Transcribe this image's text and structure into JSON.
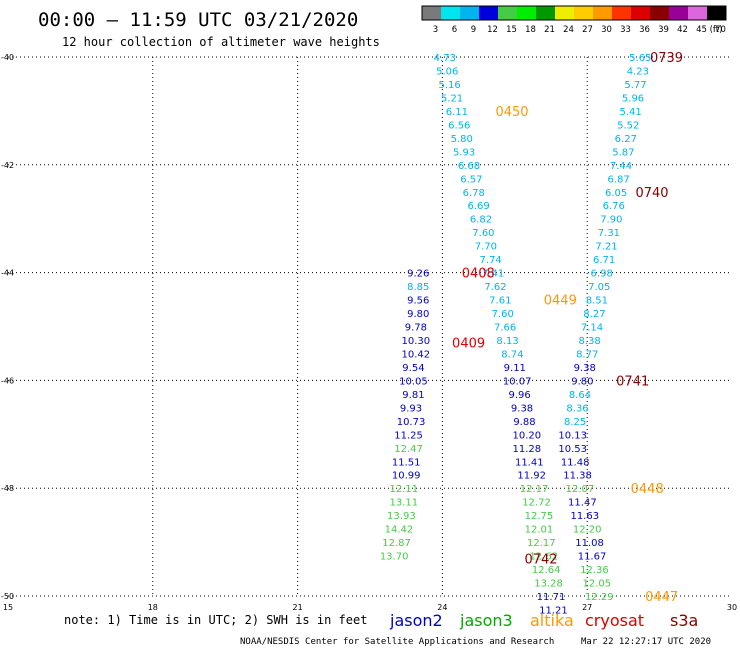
{
  "header": {
    "title": "00:00 – 11:59 UTC 03/21/2020",
    "subtitle": "12 hour collection of altimeter wave heights"
  },
  "colorbar": {
    "labels": [
      "3",
      "6",
      "9",
      "12",
      "15",
      "18",
      "21",
      "24",
      "27",
      "30",
      "33",
      "36",
      "39",
      "42",
      "45",
      "70"
    ],
    "unit": "(ft)",
    "colors": [
      "#7a7a7a",
      "#00e5ee",
      "#00b4f0",
      "#0000dd",
      "#44cc44",
      "#00ee00",
      "#009900",
      "#eeee00",
      "#ffcc00",
      "#ff9900",
      "#ff3300",
      "#dd0000",
      "#880000",
      "#990099",
      "#dd66dd",
      "#000000"
    ]
  },
  "footer": {
    "note": "note: 1) Time is in UTC; 2) SWH is in feet",
    "credit": "NOAA/NESDIS Center for Satellite Applications and Research",
    "timestamp": "Mar 22 12:27:17 UTC 2020"
  },
  "legend": [
    {
      "label": "jason2",
      "color": "#0000cc"
    },
    {
      "label": "jason3",
      "color": "#00aa00"
    },
    {
      "label": "altika",
      "color": "#ff9900"
    },
    {
      "label": "cryosat",
      "color": "#dd0000"
    },
    {
      "label": "s3a",
      "color": "#880000"
    }
  ],
  "chart_data": {
    "type": "scatter",
    "xlim": [
      15,
      30
    ],
    "ylim": [
      -50,
      -40
    ],
    "xticks": [
      "15",
      "18",
      "21",
      "24",
      "27",
      "30"
    ],
    "yticks": [
      "-40",
      "-42",
      "-44",
      "-46",
      "-48",
      "-50"
    ],
    "grid": true,
    "passes": [
      {
        "label": "0739",
        "x": 28.3,
        "y": -40.0,
        "color": "#880000"
      },
      {
        "label": "0450",
        "x": 25.1,
        "y": -41.0,
        "color": "#ff9900"
      },
      {
        "label": "0740",
        "x": 28.0,
        "y": -42.5,
        "color": "#880000"
      },
      {
        "label": "0408",
        "x": 24.4,
        "y": -44.0,
        "color": "#dd0000"
      },
      {
        "label": "0449",
        "x": 26.1,
        "y": -44.5,
        "color": "#ff9900"
      },
      {
        "label": "0409",
        "x": 24.2,
        "y": -45.3,
        "color": "#dd0000"
      },
      {
        "label": "0741",
        "x": 27.6,
        "y": -46.0,
        "color": "#880000"
      },
      {
        "label": "0448",
        "x": 27.9,
        "y": -48.0,
        "color": "#ff9900"
      },
      {
        "label": "0742",
        "x": 25.7,
        "y": -49.3,
        "color": "#880000"
      },
      {
        "label": "0447",
        "x": 28.2,
        "y": -50.0,
        "color": "#ff9900"
      }
    ],
    "series": [
      {
        "name": "jason2",
        "values": [
          {
            "x": 23.5,
            "y": -44.0,
            "v": "9.26",
            "c": "#0000cc"
          },
          {
            "x": 23.5,
            "y": -44.25,
            "v": "8.85",
            "c": "#00b4f0"
          },
          {
            "x": 23.5,
            "y": -44.5,
            "v": "9.56",
            "c": "#0000cc"
          },
          {
            "x": 23.5,
            "y": -44.75,
            "v": "9.80",
            "c": "#0000cc"
          },
          {
            "x": 23.45,
            "y": -45.0,
            "v": "9.78",
            "c": "#0000cc"
          },
          {
            "x": 23.45,
            "y": -45.25,
            "v": "10.30",
            "c": "#0000cc"
          },
          {
            "x": 23.45,
            "y": -45.5,
            "v": "10.42",
            "c": "#0000cc"
          },
          {
            "x": 23.4,
            "y": -45.75,
            "v": "9.54",
            "c": "#0000cc"
          },
          {
            "x": 23.4,
            "y": -46.0,
            "v": "10.05",
            "c": "#0000cc"
          },
          {
            "x": 23.4,
            "y": -46.25,
            "v": "9.81",
            "c": "#0000cc"
          },
          {
            "x": 23.35,
            "y": -46.5,
            "v": "9.93",
            "c": "#0000cc"
          },
          {
            "x": 23.35,
            "y": -46.75,
            "v": "10.73",
            "c": "#0000cc"
          },
          {
            "x": 23.3,
            "y": -47.0,
            "v": "11.25",
            "c": "#0000cc"
          },
          {
            "x": 23.3,
            "y": -47.25,
            "v": "12.47",
            "c": "#44cc44"
          },
          {
            "x": 23.25,
            "y": -47.5,
            "v": "11.51",
            "c": "#0000cc"
          },
          {
            "x": 23.25,
            "y": -47.75,
            "v": "10.99",
            "c": "#0000cc"
          },
          {
            "x": 23.2,
            "y": -48.0,
            "v": "12.11",
            "c": "#44cc44"
          },
          {
            "x": 23.2,
            "y": -48.25,
            "v": "13.11",
            "c": "#44cc44"
          },
          {
            "x": 23.15,
            "y": -48.5,
            "v": "13.93",
            "c": "#44cc44"
          },
          {
            "x": 23.1,
            "y": -48.75,
            "v": "14.42",
            "c": "#44cc44"
          },
          {
            "x": 23.05,
            "y": -49.0,
            "v": "12.87",
            "c": "#44cc44"
          },
          {
            "x": 23.0,
            "y": -49.25,
            "v": "13.70",
            "c": "#44cc44"
          }
        ]
      },
      {
        "name": "jason3",
        "values": [
          {
            "x": 24.05,
            "y": -40.0,
            "v": "4.73",
            "c": "#00b4f0"
          },
          {
            "x": 24.1,
            "y": -40.25,
            "v": "5.06",
            "c": "#00b4f0"
          },
          {
            "x": 24.15,
            "y": -40.5,
            "v": "5.16",
            "c": "#00b4f0"
          },
          {
            "x": 24.2,
            "y": -40.75,
            "v": "5.21",
            "c": "#00b4f0"
          },
          {
            "x": 24.3,
            "y": -41.0,
            "v": "6.11",
            "c": "#00b4f0"
          },
          {
            "x": 24.35,
            "y": -41.25,
            "v": "6.56",
            "c": "#00b4f0"
          },
          {
            "x": 24.4,
            "y": -41.5,
            "v": "5.80",
            "c": "#00b4f0"
          },
          {
            "x": 24.45,
            "y": -41.75,
            "v": "5.93",
            "c": "#00b4f0"
          },
          {
            "x": 24.55,
            "y": -42.0,
            "v": "6.68",
            "c": "#00b4f0"
          },
          {
            "x": 24.6,
            "y": -42.25,
            "v": "6.57",
            "c": "#00b4f0"
          },
          {
            "x": 24.65,
            "y": -42.5,
            "v": "6.78",
            "c": "#00b4f0"
          },
          {
            "x": 24.75,
            "y": -42.75,
            "v": "6.69",
            "c": "#00b4f0"
          },
          {
            "x": 24.8,
            "y": -43.0,
            "v": "6.82",
            "c": "#00b4f0"
          },
          {
            "x": 24.85,
            "y": -43.25,
            "v": "7.60",
            "c": "#00b4f0"
          },
          {
            "x": 24.9,
            "y": -43.5,
            "v": "7.70",
            "c": "#00b4f0"
          },
          {
            "x": 25.0,
            "y": -43.75,
            "v": "7.74",
            "c": "#00b4f0"
          },
          {
            "x": 25.05,
            "y": -44.0,
            "v": "7.41",
            "c": "#00b4f0"
          },
          {
            "x": 25.1,
            "y": -44.25,
            "v": "7.62",
            "c": "#00b4f0"
          },
          {
            "x": 25.2,
            "y": -44.5,
            "v": "7.61",
            "c": "#00b4f0"
          },
          {
            "x": 25.25,
            "y": -44.75,
            "v": "7.60",
            "c": "#00b4f0"
          },
          {
            "x": 25.3,
            "y": -45.0,
            "v": "7.66",
            "c": "#00b4f0"
          },
          {
            "x": 25.35,
            "y": -45.25,
            "v": "8.13",
            "c": "#00b4f0"
          },
          {
            "x": 25.45,
            "y": -45.5,
            "v": "8.74",
            "c": "#00b4f0"
          },
          {
            "x": 25.5,
            "y": -45.75,
            "v": "9.11",
            "c": "#0000cc"
          },
          {
            "x": 25.55,
            "y": -46.0,
            "v": "10.07",
            "c": "#0000cc"
          },
          {
            "x": 25.6,
            "y": -46.25,
            "v": "9.96",
            "c": "#0000cc"
          },
          {
            "x": 25.65,
            "y": -46.5,
            "v": "9.38",
            "c": "#0000cc"
          },
          {
            "x": 25.7,
            "y": -46.75,
            "v": "9.88",
            "c": "#0000cc"
          },
          {
            "x": 25.75,
            "y": -47.0,
            "v": "10.20",
            "c": "#0000cc"
          },
          {
            "x": 25.75,
            "y": -47.25,
            "v": "11.28",
            "c": "#0000cc"
          },
          {
            "x": 25.8,
            "y": -47.5,
            "v": "11.41",
            "c": "#0000cc"
          },
          {
            "x": 25.85,
            "y": -47.75,
            "v": "11.92",
            "c": "#0000cc"
          },
          {
            "x": 25.9,
            "y": -48.0,
            "v": "12.17",
            "c": "#44cc44"
          },
          {
            "x": 25.95,
            "y": -48.25,
            "v": "12.72",
            "c": "#44cc44"
          },
          {
            "x": 26.0,
            "y": -48.5,
            "v": "12.75",
            "c": "#44cc44"
          },
          {
            "x": 26.0,
            "y": -48.75,
            "v": "12.01",
            "c": "#44cc44"
          },
          {
            "x": 26.05,
            "y": -49.0,
            "v": "12.17",
            "c": "#44cc44"
          },
          {
            "x": 26.1,
            "y": -49.25,
            "v": "12.62",
            "c": "#44cc44"
          },
          {
            "x": 26.15,
            "y": -49.5,
            "v": "12.64",
            "c": "#44cc44"
          },
          {
            "x": 26.2,
            "y": -49.75,
            "v": "13.28",
            "c": "#44cc44"
          },
          {
            "x": 26.25,
            "y": -50.0,
            "v": "11.71",
            "c": "#0000cc"
          },
          {
            "x": 26.3,
            "y": -50.25,
            "v": "11.21",
            "c": "#0000cc"
          }
        ]
      },
      {
        "name": "s3a",
        "values": [
          {
            "x": 28.1,
            "y": -40.0,
            "v": "5.65",
            "c": "#00b4f0"
          },
          {
            "x": 28.05,
            "y": -40.25,
            "v": "4.23",
            "c": "#00b4f0"
          },
          {
            "x": 28.0,
            "y": -40.5,
            "v": "5.77",
            "c": "#00b4f0"
          },
          {
            "x": 27.95,
            "y": -40.75,
            "v": "5.96",
            "c": "#00b4f0"
          },
          {
            "x": 27.9,
            "y": -41.0,
            "v": "5.41",
            "c": "#00b4f0"
          },
          {
            "x": 27.85,
            "y": -41.25,
            "v": "5.52",
            "c": "#00b4f0"
          },
          {
            "x": 27.8,
            "y": -41.5,
            "v": "6.27",
            "c": "#00b4f0"
          },
          {
            "x": 27.75,
            "y": -41.75,
            "v": "5.87",
            "c": "#00b4f0"
          },
          {
            "x": 27.7,
            "y": -42.0,
            "v": "7.44",
            "c": "#00b4f0"
          },
          {
            "x": 27.65,
            "y": -42.25,
            "v": "6.87",
            "c": "#00b4f0"
          },
          {
            "x": 27.6,
            "y": -42.5,
            "v": "6.05",
            "c": "#00b4f0"
          },
          {
            "x": 27.55,
            "y": -42.75,
            "v": "6.76",
            "c": "#00b4f0"
          },
          {
            "x": 27.5,
            "y": -43.0,
            "v": "7.90",
            "c": "#00b4f0"
          },
          {
            "x": 27.45,
            "y": -43.25,
            "v": "7.31",
            "c": "#00b4f0"
          },
          {
            "x": 27.4,
            "y": -43.5,
            "v": "7.21",
            "c": "#00b4f0"
          },
          {
            "x": 27.35,
            "y": -43.75,
            "v": "6.71",
            "c": "#00b4f0"
          },
          {
            "x": 27.3,
            "y": -44.0,
            "v": "6.98",
            "c": "#00b4f0"
          },
          {
            "x": 27.25,
            "y": -44.25,
            "v": "7.05",
            "c": "#00b4f0"
          },
          {
            "x": 27.2,
            "y": -44.5,
            "v": "8.51",
            "c": "#00b4f0"
          },
          {
            "x": 27.15,
            "y": -44.75,
            "v": "8.27",
            "c": "#00b4f0"
          },
          {
            "x": 27.1,
            "y": -45.0,
            "v": "7.14",
            "c": "#00b4f0"
          },
          {
            "x": 27.05,
            "y": -45.25,
            "v": "8.38",
            "c": "#00b4f0"
          },
          {
            "x": 27.0,
            "y": -45.5,
            "v": "8.77",
            "c": "#00b4f0"
          },
          {
            "x": 26.95,
            "y": -45.75,
            "v": "9.38",
            "c": "#0000cc"
          },
          {
            "x": 26.9,
            "y": -46.0,
            "v": "9.80",
            "c": "#0000cc"
          },
          {
            "x": 26.85,
            "y": -46.25,
            "v": "8.64",
            "c": "#00b4f0"
          },
          {
            "x": 26.8,
            "y": -46.5,
            "v": "8.36",
            "c": "#00b4f0"
          },
          {
            "x": 26.75,
            "y": -46.75,
            "v": "8.25",
            "c": "#00b4f0"
          },
          {
            "x": 26.7,
            "y": -47.0,
            "v": "10.13",
            "c": "#0000cc"
          },
          {
            "x": 26.7,
            "y": -47.25,
            "v": "10.53",
            "c": "#0000cc"
          },
          {
            "x": 26.75,
            "y": -47.5,
            "v": "11.48",
            "c": "#0000cc"
          },
          {
            "x": 26.8,
            "y": -47.75,
            "v": "11.38",
            "c": "#0000cc"
          },
          {
            "x": 26.85,
            "y": -48.0,
            "v": "12.07",
            "c": "#44cc44"
          },
          {
            "x": 26.9,
            "y": -48.25,
            "v": "11.47",
            "c": "#0000cc"
          },
          {
            "x": 26.95,
            "y": -48.5,
            "v": "11.63",
            "c": "#0000cc"
          },
          {
            "x": 27.0,
            "y": -48.75,
            "v": "12.20",
            "c": "#44cc44"
          },
          {
            "x": 27.05,
            "y": -49.0,
            "v": "11.08",
            "c": "#0000cc"
          },
          {
            "x": 27.1,
            "y": -49.25,
            "v": "11.67",
            "c": "#0000cc"
          },
          {
            "x": 27.15,
            "y": -49.5,
            "v": "12.36",
            "c": "#44cc44"
          },
          {
            "x": 27.2,
            "y": -49.75,
            "v": "12.05",
            "c": "#44cc44"
          },
          {
            "x": 27.25,
            "y": -50.0,
            "v": "12.29",
            "c": "#44cc44"
          }
        ]
      }
    ]
  }
}
